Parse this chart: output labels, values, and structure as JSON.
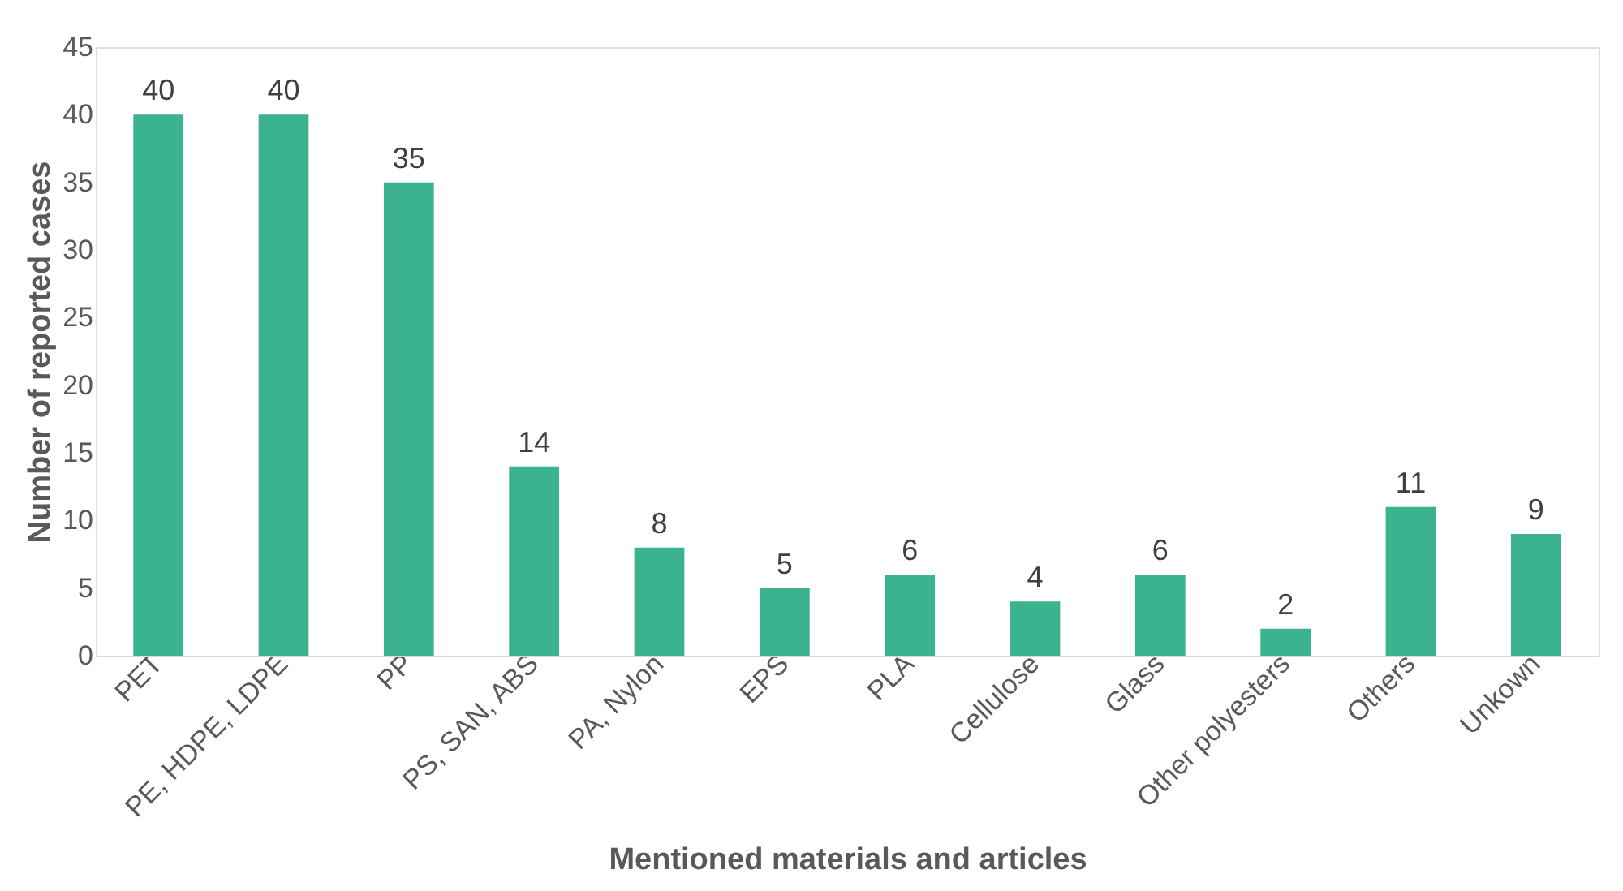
{
  "chart_data": {
    "type": "bar",
    "xlabel": "Mentioned materials and articles",
    "ylabel": "Number of reported cases",
    "categories": [
      "PET",
      "PE, HDPE, LDPE",
      "PP",
      "PS, SAN, ABS",
      "PA, Nylon",
      "EPS",
      "PLA",
      "Cellulose",
      "Glass",
      "Other polyesters",
      "Others",
      "Unkown"
    ],
    "values": [
      40,
      40,
      35,
      14,
      8,
      5,
      6,
      4,
      6,
      2,
      11,
      9
    ],
    "color": "#3bb391",
    "ylim": [
      0,
      45
    ],
    "yticks": [
      0,
      5,
      10,
      15,
      20,
      25,
      30,
      35,
      40,
      45
    ],
    "grid": false,
    "data_labels": true
  }
}
